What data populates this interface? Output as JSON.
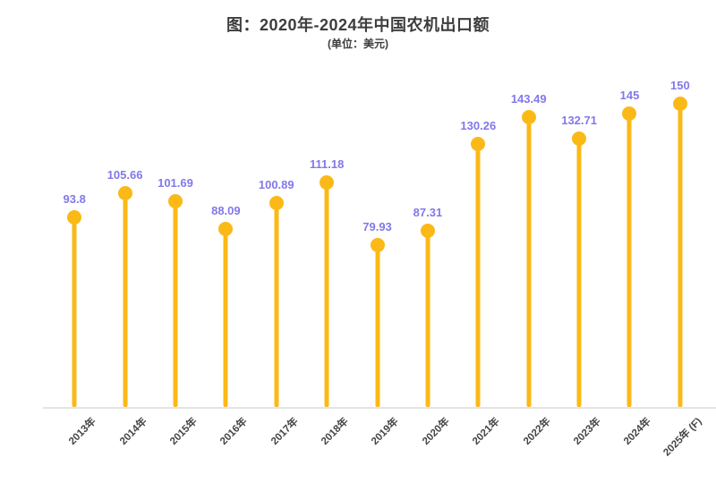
{
  "header": {
    "title": "图：2020年-2024年中国农机出口额",
    "subtitle": "(单位：美元)"
  },
  "colors": {
    "accent_amber": "#FBB917",
    "value_label_purple": "#8278EA",
    "title_gray": "#3D3D3D",
    "axis_label_gray": "#454545",
    "baseline_gray": "#E4E4E4"
  },
  "chart_data": {
    "type": "bar",
    "style": "lollipop",
    "title": "图：2020年-2024年中国农机出口额",
    "unit_label": "(单位：美元)",
    "categories": [
      "2013年",
      "2014年",
      "2015年",
      "2016年",
      "2017年",
      "2018年",
      "2019年",
      "2020年",
      "2021年",
      "2022年",
      "2023年",
      "2024年",
      "2025年 (F)"
    ],
    "values": [
      93.8,
      105.66,
      101.69,
      88.09,
      100.89,
      111.18,
      79.93,
      87.31,
      130.26,
      143.49,
      132.71,
      145,
      150
    ],
    "value_labels": [
      "93.8",
      "105.66",
      "101.69",
      "88.09",
      "100.89",
      "111.18",
      "79.93",
      "87.31",
      "130.26",
      "143.49",
      "132.71",
      "145",
      "150"
    ],
    "xlabel": "",
    "ylabel": "",
    "ylim": [
      0,
      166
    ],
    "grid": false,
    "legend": false,
    "x_tick_rotation_deg": 45
  }
}
